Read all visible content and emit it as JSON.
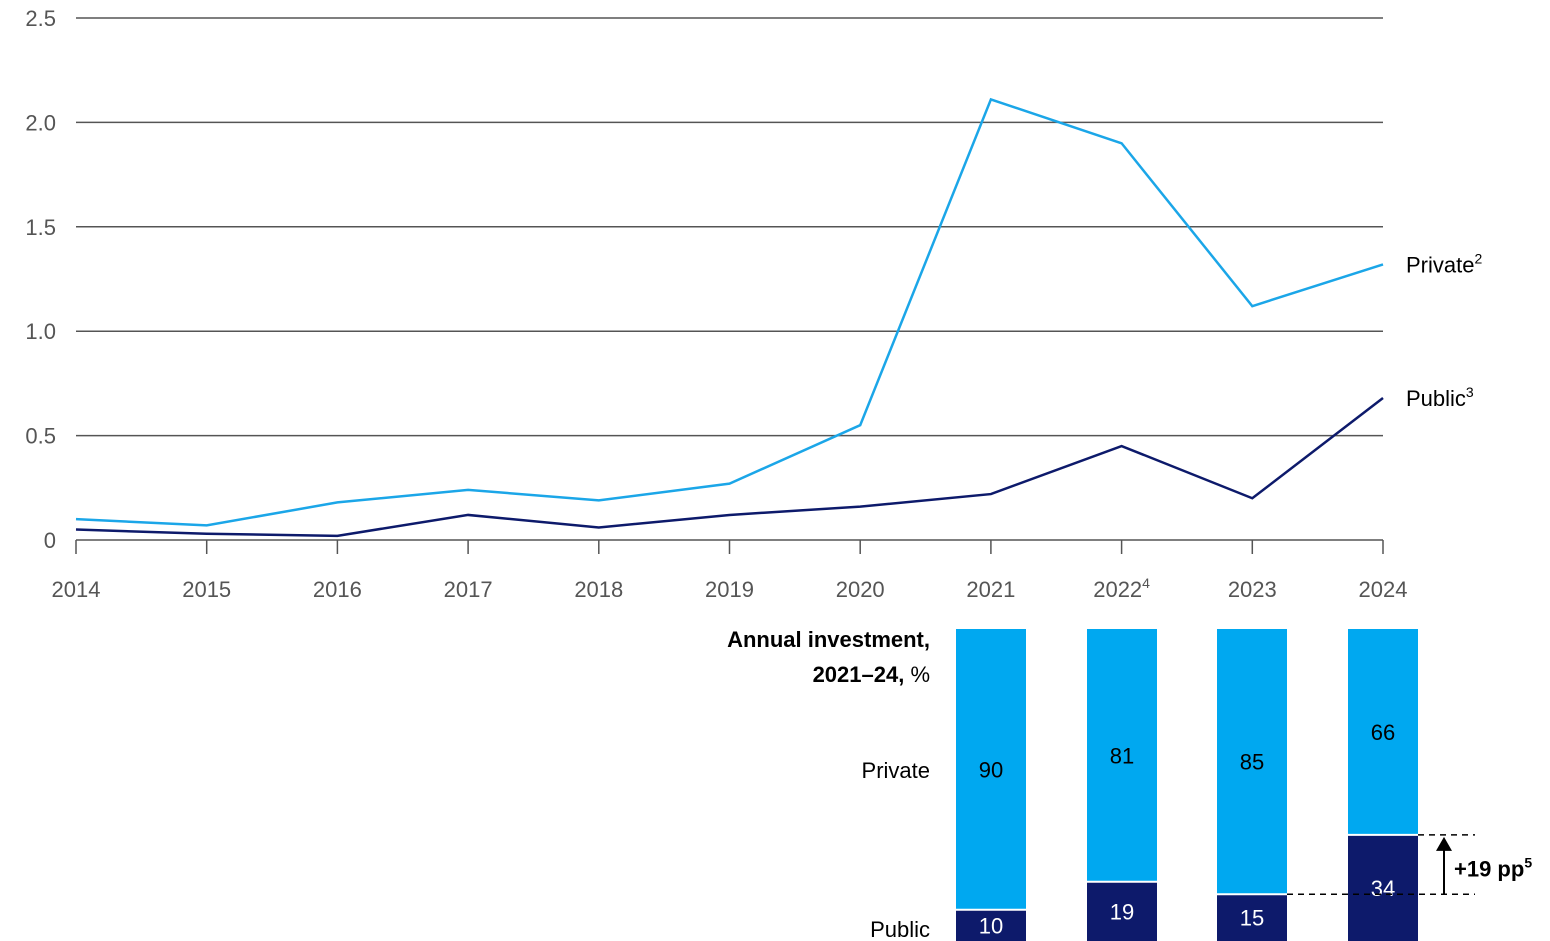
{
  "colors": {
    "private": "#1ba6e8",
    "public": "#0d1a6b",
    "bar_private": "#00a8f0",
    "bar_public": "#0d1a6b",
    "grid": "#555555"
  },
  "chart_data": [
    {
      "type": "line",
      "x": [
        "2014",
        "2015",
        "2016",
        "2017",
        "2018",
        "2019",
        "2020",
        "2021",
        "2022",
        "2023",
        "2024"
      ],
      "x_footnotes": {
        "2022": "4"
      },
      "y_ticks": [
        "0",
        "0.5",
        "1.0",
        "1.5",
        "2.0",
        "2.5"
      ],
      "ylim": [
        0,
        2.5
      ],
      "grid": true,
      "series": [
        {
          "name": "Private",
          "footnote": "2",
          "color_key": "private",
          "values": [
            0.1,
            0.07,
            0.18,
            0.24,
            0.19,
            0.27,
            0.55,
            2.11,
            1.9,
            1.12,
            1.32
          ]
        },
        {
          "name": "Public",
          "footnote": "3",
          "color_key": "public",
          "values": [
            0.05,
            0.03,
            0.02,
            0.12,
            0.06,
            0.12,
            0.16,
            0.22,
            0.45,
            0.2,
            0.68
          ]
        }
      ]
    },
    {
      "type": "bar",
      "stacked": true,
      "title_bold": "Annual investment,",
      "title_bold_2": "2021–24,",
      "title_unit": "%",
      "categories": [
        "2021",
        "2022",
        "2023",
        "2024"
      ],
      "row_labels": {
        "private": "Private",
        "public": "Public"
      },
      "series": [
        {
          "name": "Private",
          "values": [
            90,
            81,
            85,
            66
          ]
        },
        {
          "name": "Public",
          "values": [
            10,
            19,
            15,
            34
          ]
        }
      ],
      "annotation": {
        "text": "+19 pp",
        "footnote": "5",
        "from": "2023",
        "to": "2024"
      }
    }
  ]
}
